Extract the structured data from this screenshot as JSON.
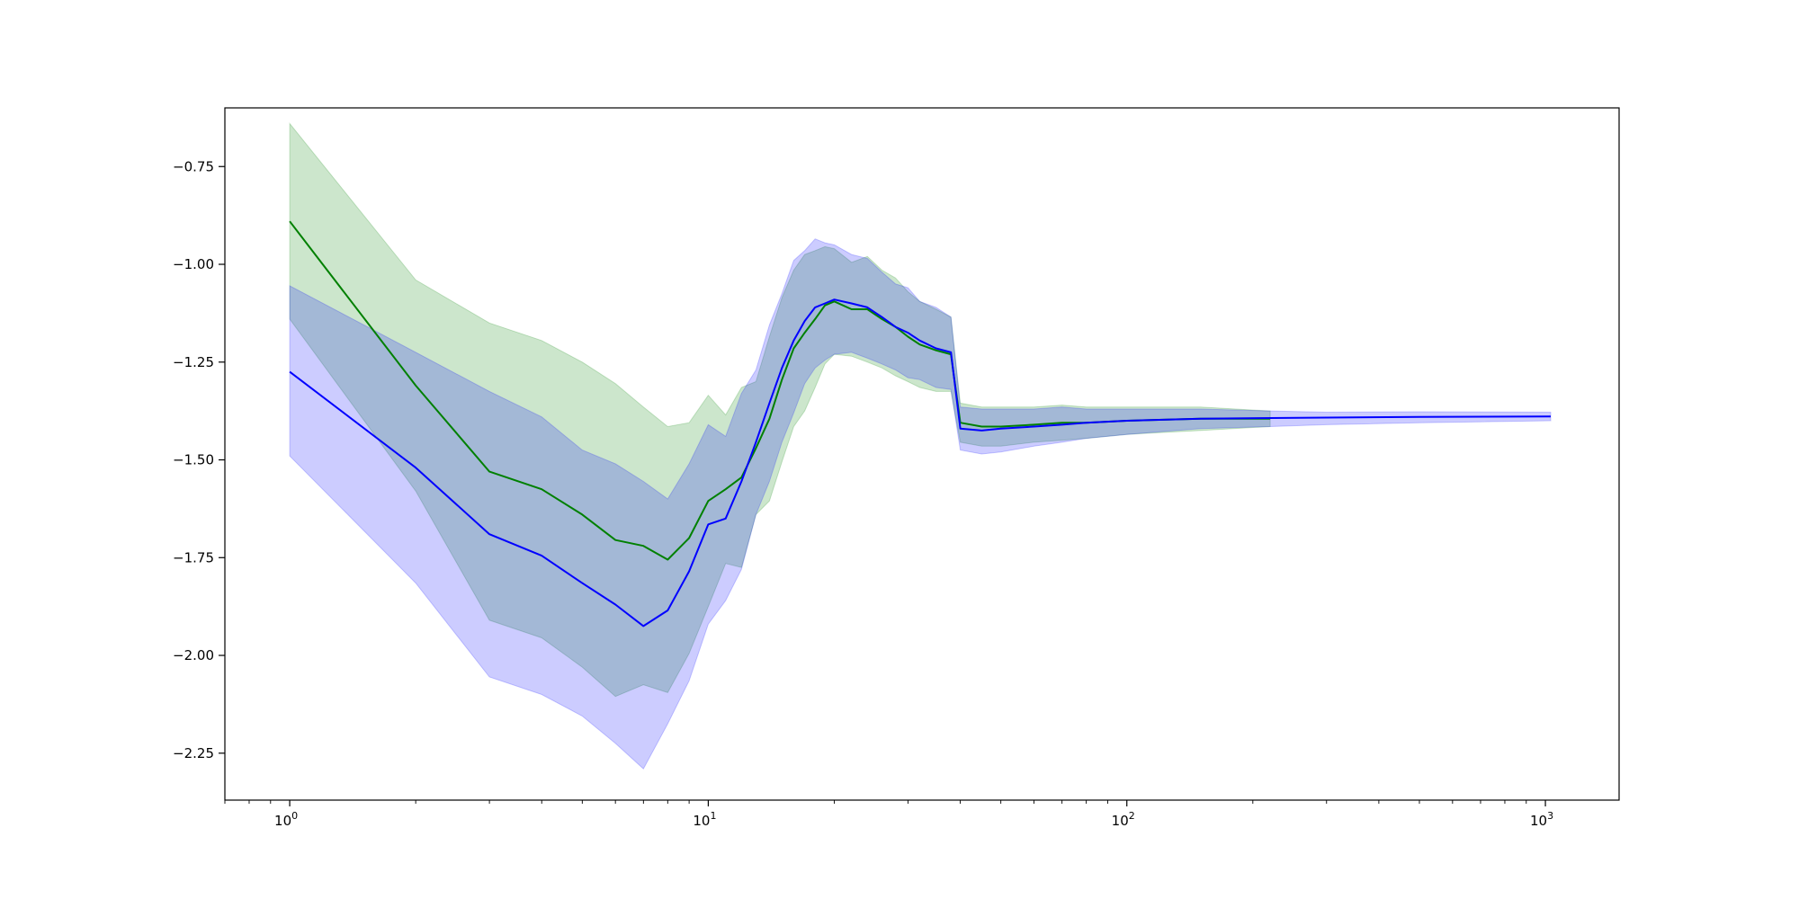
{
  "chart_data": {
    "type": "line",
    "title": "",
    "xlabel": "",
    "ylabel": "",
    "x_scale": "log",
    "xlim": [
      0.7,
      1500
    ],
    "ylim": [
      -2.37,
      -0.6
    ],
    "x_ticks": [
      {
        "value": 1,
        "base": "10",
        "exp": "0"
      },
      {
        "value": 10,
        "base": "10",
        "exp": "1"
      },
      {
        "value": 100,
        "base": "10",
        "exp": "2"
      },
      {
        "value": 1000,
        "base": "10",
        "exp": "3"
      }
    ],
    "y_ticks": [
      {
        "value": -0.75,
        "label": "−0.75"
      },
      {
        "value": -1.0,
        "label": "−1.00"
      },
      {
        "value": -1.25,
        "label": "−1.25"
      },
      {
        "value": -1.5,
        "label": "−1.50"
      },
      {
        "value": -1.75,
        "label": "−1.75"
      },
      {
        "value": -2.0,
        "label": "−2.00"
      },
      {
        "value": -2.25,
        "label": "−2.25"
      }
    ],
    "grid": false,
    "legend": "none",
    "series": [
      {
        "color": "#008000",
        "band_color": "#008000",
        "band_opacity": 0.2,
        "points": [
          {
            "x": 1,
            "y": -0.89,
            "lo": -1.14,
            "hi": -0.64
          },
          {
            "x": 2,
            "y": -1.31,
            "lo": -1.58,
            "hi": -1.04
          },
          {
            "x": 3,
            "y": -1.53,
            "lo": -1.91,
            "hi": -1.15
          },
          {
            "x": 4,
            "y": -1.575,
            "lo": -1.955,
            "hi": -1.195
          },
          {
            "x": 5,
            "y": -1.64,
            "lo": -2.03,
            "hi": -1.25
          },
          {
            "x": 6,
            "y": -1.705,
            "lo": -2.105,
            "hi": -1.305
          },
          {
            "x": 7,
            "y": -1.72,
            "lo": -2.075,
            "hi": -1.365
          },
          {
            "x": 8,
            "y": -1.755,
            "lo": -2.095,
            "hi": -1.415
          },
          {
            "x": 9,
            "y": -1.7,
            "lo": -1.995,
            "hi": -1.405
          },
          {
            "x": 10,
            "y": -1.605,
            "lo": -1.875,
            "hi": -1.335
          },
          {
            "x": 11,
            "y": -1.575,
            "lo": -1.765,
            "hi": -1.385
          },
          {
            "x": 12,
            "y": -1.545,
            "lo": -1.775,
            "hi": -1.315
          },
          {
            "x": 13,
            "y": -1.47,
            "lo": -1.64,
            "hi": -1.3
          },
          {
            "x": 14,
            "y": -1.395,
            "lo": -1.605,
            "hi": -1.185
          },
          {
            "x": 15,
            "y": -1.295,
            "lo": -1.505,
            "hi": -1.085
          },
          {
            "x": 16,
            "y": -1.215,
            "lo": -1.415,
            "hi": -1.015
          },
          {
            "x": 17,
            "y": -1.175,
            "lo": -1.375,
            "hi": -0.975
          },
          {
            "x": 18,
            "y": -1.14,
            "lo": -1.315,
            "hi": -0.965
          },
          {
            "x": 19,
            "y": -1.105,
            "lo": -1.255,
            "hi": -0.955
          },
          {
            "x": 20,
            "y": -1.095,
            "lo": -1.23,
            "hi": -0.96
          },
          {
            "x": 22,
            "y": -1.115,
            "lo": -1.235,
            "hi": -0.995
          },
          {
            "x": 24,
            "y": -1.115,
            "lo": -1.25,
            "hi": -0.98
          },
          {
            "x": 26,
            "y": -1.14,
            "lo": -1.265,
            "hi": -1.015
          },
          {
            "x": 28,
            "y": -1.16,
            "lo": -1.285,
            "hi": -1.035
          },
          {
            "x": 30,
            "y": -1.185,
            "lo": -1.3,
            "hi": -1.07
          },
          {
            "x": 32,
            "y": -1.205,
            "lo": -1.315,
            "hi": -1.095
          },
          {
            "x": 35,
            "y": -1.22,
            "lo": -1.325,
            "hi": -1.115
          },
          {
            "x": 38,
            "y": -1.23,
            "lo": -1.325,
            "hi": -1.135
          },
          {
            "x": 40,
            "y": -1.405,
            "lo": -1.455,
            "hi": -1.355
          },
          {
            "x": 45,
            "y": -1.415,
            "lo": -1.465,
            "hi": -1.365
          },
          {
            "x": 50,
            "y": -1.415,
            "lo": -1.465,
            "hi": -1.365
          },
          {
            "x": 60,
            "y": -1.41,
            "lo": -1.455,
            "hi": -1.365
          },
          {
            "x": 70,
            "y": -1.405,
            "lo": -1.45,
            "hi": -1.36
          },
          {
            "x": 80,
            "y": -1.405,
            "lo": -1.445,
            "hi": -1.365
          },
          {
            "x": 100,
            "y": -1.4,
            "lo": -1.435,
            "hi": -1.365
          },
          {
            "x": 150,
            "y": -1.395,
            "lo": -1.425,
            "hi": -1.365
          },
          {
            "x": 220,
            "y": -1.395,
            "lo": -1.415,
            "hi": -1.375
          }
        ]
      },
      {
        "color": "#0000ff",
        "band_color": "#0000ff",
        "band_opacity": 0.2,
        "points": [
          {
            "x": 1,
            "y": -1.275,
            "lo": -1.49,
            "hi": -1.055
          },
          {
            "x": 2,
            "y": -1.52,
            "lo": -1.815,
            "hi": -1.225
          },
          {
            "x": 3,
            "y": -1.69,
            "lo": -2.055,
            "hi": -1.325
          },
          {
            "x": 4,
            "y": -1.745,
            "lo": -2.1,
            "hi": -1.39
          },
          {
            "x": 5,
            "y": -1.815,
            "lo": -2.155,
            "hi": -1.475
          },
          {
            "x": 6,
            "y": -1.87,
            "lo": -2.225,
            "hi": -1.51
          },
          {
            "x": 7,
            "y": -1.925,
            "lo": -2.29,
            "hi": -1.555
          },
          {
            "x": 8,
            "y": -1.885,
            "lo": -2.175,
            "hi": -1.6
          },
          {
            "x": 9,
            "y": -1.785,
            "lo": -2.065,
            "hi": -1.51
          },
          {
            "x": 10,
            "y": -1.665,
            "lo": -1.92,
            "hi": -1.41
          },
          {
            "x": 11,
            "y": -1.65,
            "lo": -1.86,
            "hi": -1.44
          },
          {
            "x": 12,
            "y": -1.555,
            "lo": -1.78,
            "hi": -1.33
          },
          {
            "x": 13,
            "y": -1.455,
            "lo": -1.64,
            "hi": -1.27
          },
          {
            "x": 14,
            "y": -1.355,
            "lo": -1.555,
            "hi": -1.155
          },
          {
            "x": 15,
            "y": -1.265,
            "lo": -1.455,
            "hi": -1.075
          },
          {
            "x": 16,
            "y": -1.195,
            "lo": -1.38,
            "hi": -0.99
          },
          {
            "x": 17,
            "y": -1.145,
            "lo": -1.305,
            "hi": -0.965
          },
          {
            "x": 18,
            "y": -1.11,
            "lo": -1.265,
            "hi": -0.935
          },
          {
            "x": 19,
            "y": -1.1,
            "lo": -1.245,
            "hi": -0.945
          },
          {
            "x": 20,
            "y": -1.09,
            "lo": -1.23,
            "hi": -0.95
          },
          {
            "x": 22,
            "y": -1.1,
            "lo": -1.225,
            "hi": -0.975
          },
          {
            "x": 24,
            "y": -1.11,
            "lo": -1.24,
            "hi": -0.985
          },
          {
            "x": 26,
            "y": -1.135,
            "lo": -1.255,
            "hi": -1.02
          },
          {
            "x": 28,
            "y": -1.16,
            "lo": -1.27,
            "hi": -1.05
          },
          {
            "x": 30,
            "y": -1.175,
            "lo": -1.29,
            "hi": -1.06
          },
          {
            "x": 32,
            "y": -1.195,
            "lo": -1.295,
            "hi": -1.095
          },
          {
            "x": 35,
            "y": -1.215,
            "lo": -1.315,
            "hi": -1.11
          },
          {
            "x": 38,
            "y": -1.225,
            "lo": -1.32,
            "hi": -1.135
          },
          {
            "x": 40,
            "y": -1.42,
            "lo": -1.475,
            "hi": -1.365
          },
          {
            "x": 45,
            "y": -1.425,
            "lo": -1.485,
            "hi": -1.37
          },
          {
            "x": 50,
            "y": -1.42,
            "lo": -1.48,
            "hi": -1.37
          },
          {
            "x": 60,
            "y": -1.415,
            "lo": -1.465,
            "hi": -1.37
          },
          {
            "x": 70,
            "y": -1.41,
            "lo": -1.455,
            "hi": -1.365
          },
          {
            "x": 80,
            "y": -1.405,
            "lo": -1.445,
            "hi": -1.37
          },
          {
            "x": 100,
            "y": -1.4,
            "lo": -1.435,
            "hi": -1.37
          },
          {
            "x": 150,
            "y": -1.395,
            "lo": -1.42,
            "hi": -1.37
          },
          {
            "x": 220,
            "y": -1.393,
            "lo": -1.415,
            "hi": -1.375
          },
          {
            "x": 300,
            "y": -1.392,
            "lo": -1.41,
            "hi": -1.378
          },
          {
            "x": 500,
            "y": -1.39,
            "lo": -1.405,
            "hi": -1.377
          },
          {
            "x": 1030,
            "y": -1.389,
            "lo": -1.4,
            "hi": -1.378
          }
        ]
      }
    ]
  }
}
